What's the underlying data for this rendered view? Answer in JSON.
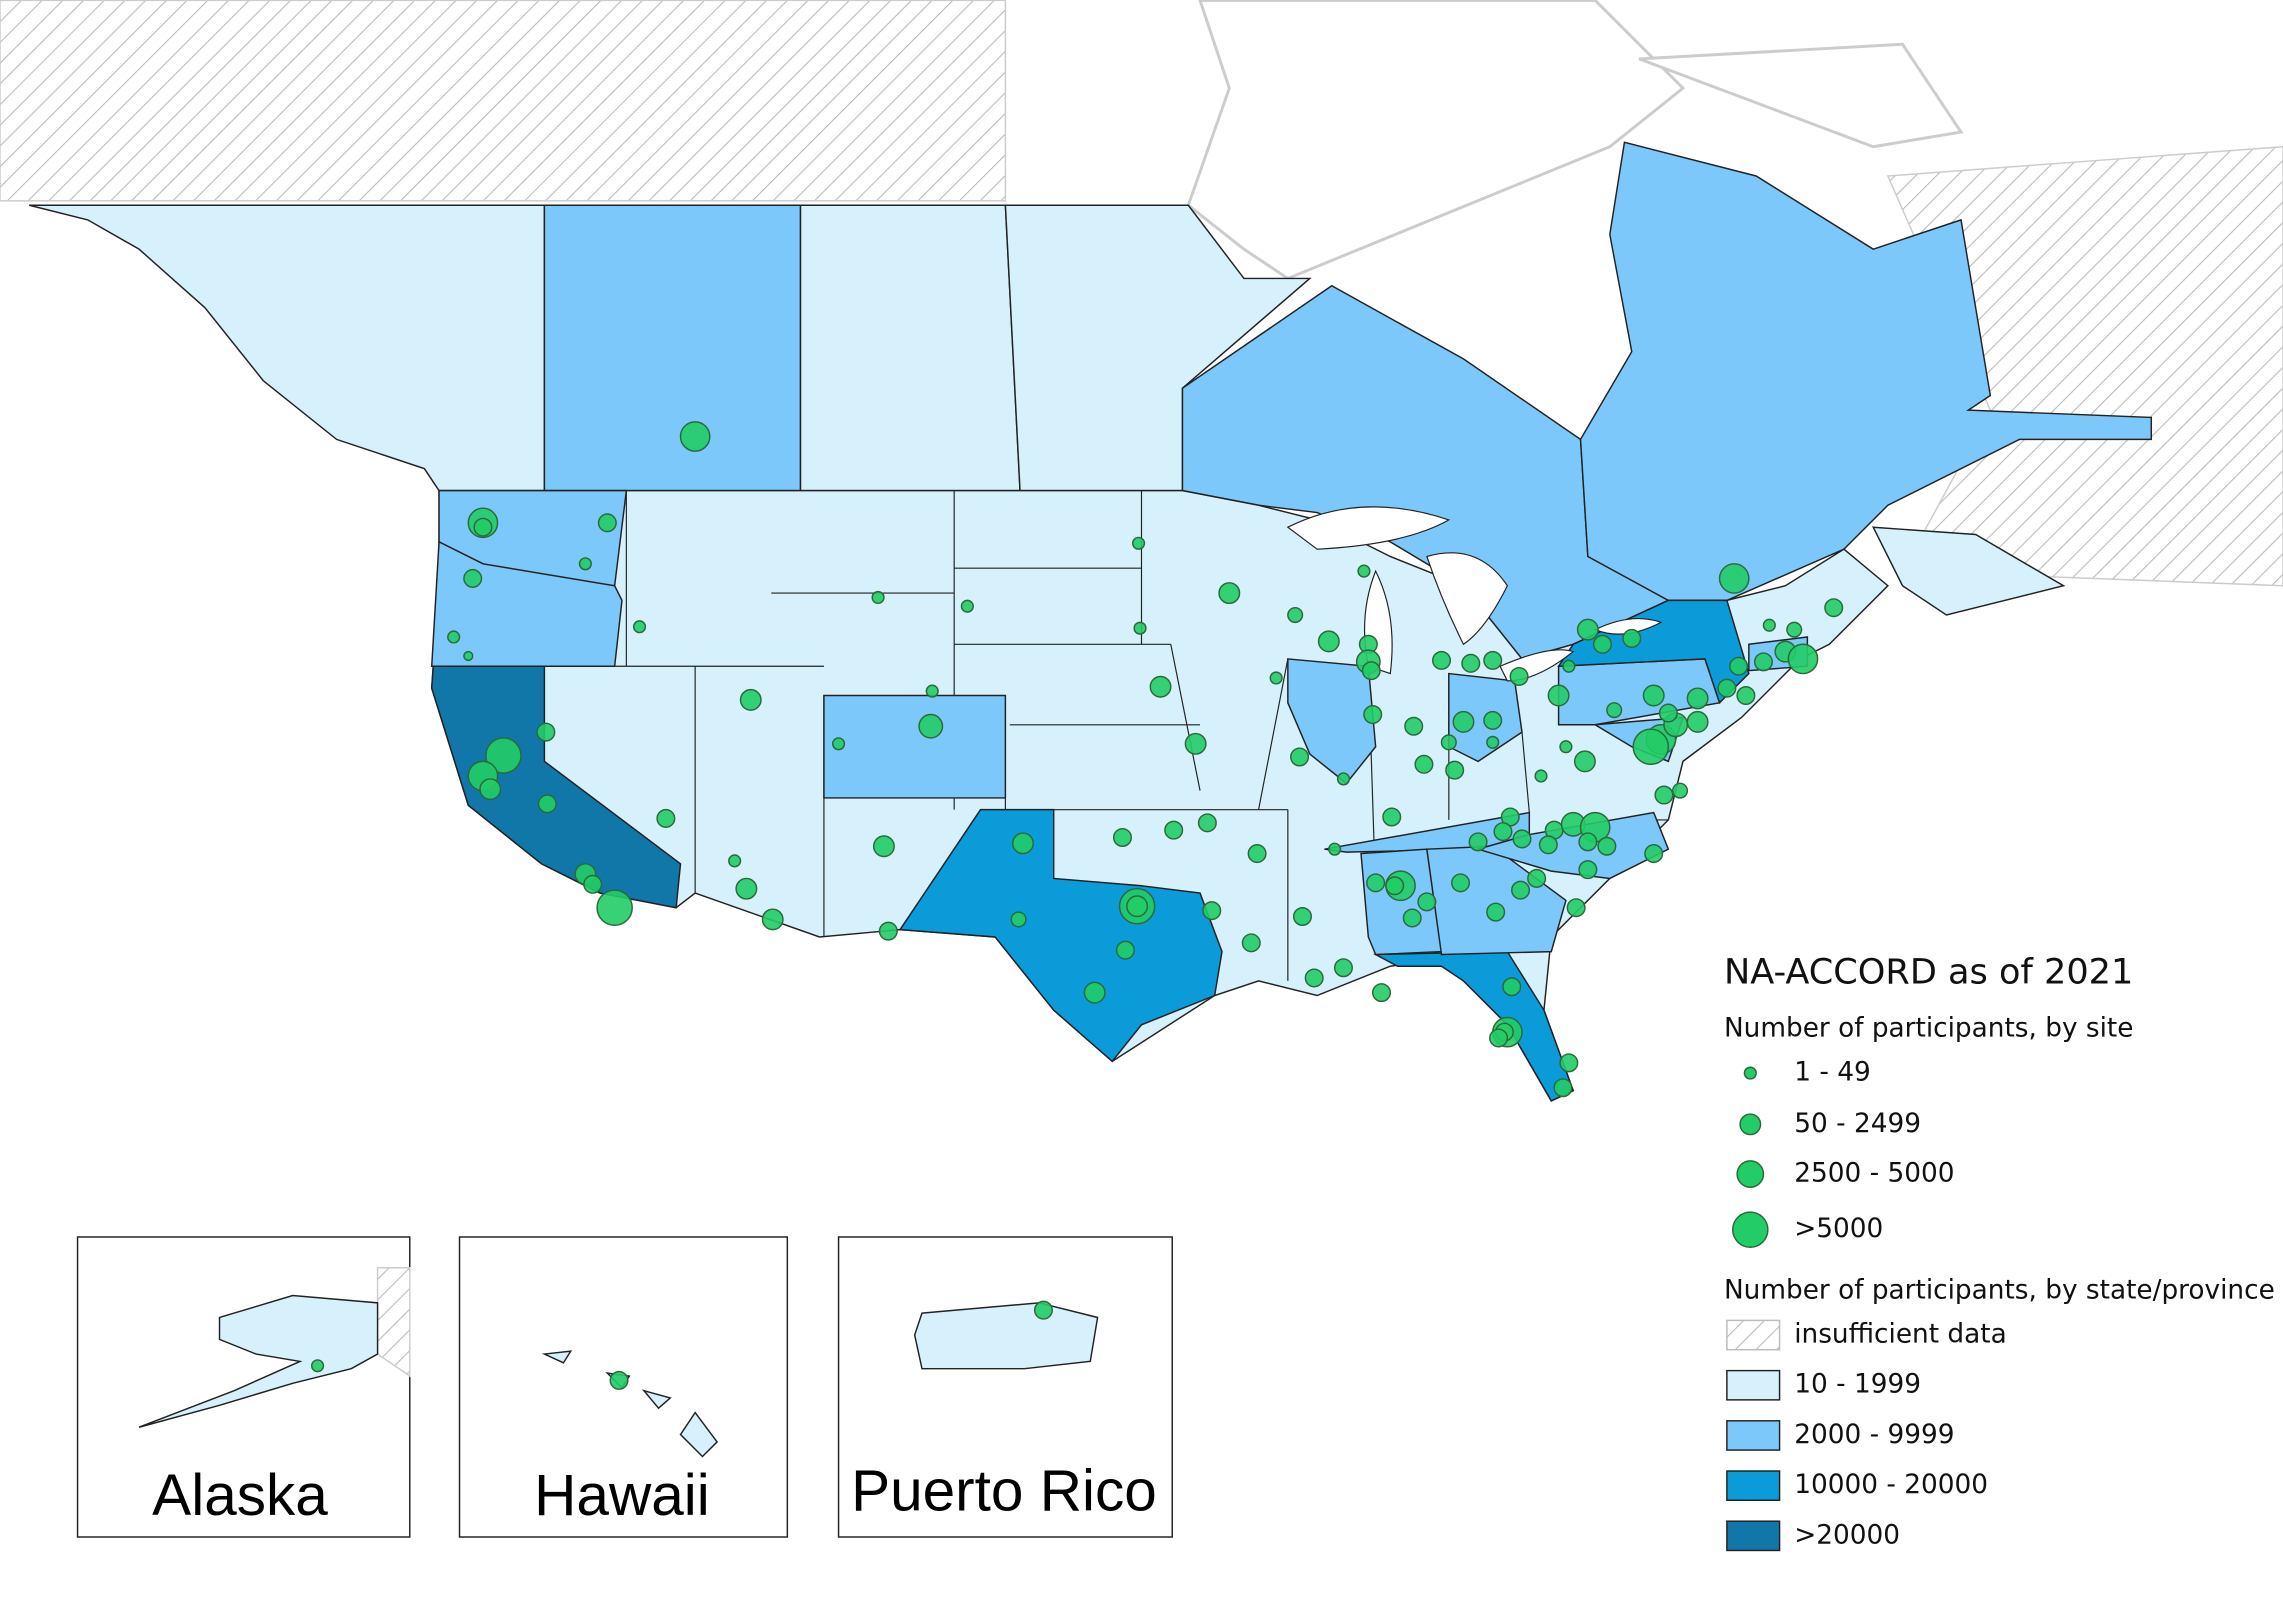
{
  "legend": {
    "title": "NA-ACCORD as of 2021",
    "site_heading": "Number of participants, by site",
    "site_classes": [
      "1 - 49",
      "50 - 2499",
      "2500 - 5000",
      ">5000"
    ],
    "site_color": "#22cc66",
    "state_heading": "Number of participants, by state/province",
    "state_classes": [
      {
        "label": "insufficient data"
      },
      {
        "label": "10 - 1999",
        "color": "#d6f0fc"
      },
      {
        "label": "2000 - 9999",
        "color": "#7cc8fa"
      },
      {
        "label": "10000 - 20000",
        "color": "#0a9bd8"
      },
      {
        "label": ">20000",
        "color": "#1077a8"
      }
    ]
  },
  "insets": [
    "Alaska",
    "Hawaii",
    "Puerto Rico"
  ]
}
